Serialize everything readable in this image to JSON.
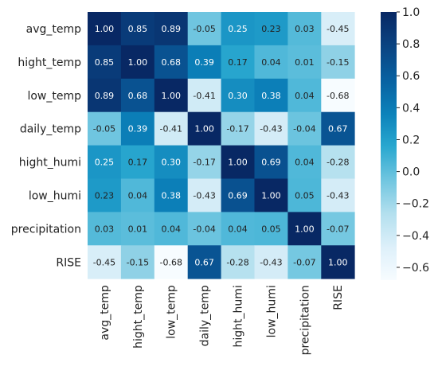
{
  "chart_data": {
    "type": "heatmap",
    "title": "",
    "xlabel": "",
    "ylabel": "",
    "rows": [
      "avg_temp",
      "hight_temp",
      "low_temp",
      "daily_temp",
      "hight_humi",
      "low_humi",
      "precipitation",
      "RISE"
    ],
    "columns": [
      "avg_temp",
      "hight_temp",
      "low_temp",
      "daily_temp",
      "hight_humi",
      "low_humi",
      "precipitation",
      "RISE"
    ],
    "values": [
      [
        1.0,
        0.85,
        0.89,
        -0.05,
        0.25,
        0.23,
        0.03,
        -0.45
      ],
      [
        0.85,
        1.0,
        0.68,
        0.39,
        0.17,
        0.04,
        0.01,
        -0.15
      ],
      [
        0.89,
        0.68,
        1.0,
        -0.41,
        0.3,
        0.38,
        0.04,
        -0.68
      ],
      [
        -0.05,
        0.39,
        -0.41,
        1.0,
        -0.17,
        -0.43,
        -0.04,
        0.67
      ],
      [
        0.25,
        0.17,
        0.3,
        -0.17,
        1.0,
        0.69,
        0.04,
        -0.28
      ],
      [
        0.23,
        0.04,
        0.38,
        -0.43,
        0.69,
        1.0,
        0.05,
        -0.43
      ],
      [
        0.03,
        0.01,
        0.04,
        -0.04,
        0.04,
        0.05,
        1.0,
        -0.07
      ],
      [
        -0.45,
        -0.15,
        -0.68,
        0.67,
        -0.28,
        -0.43,
        -0.07,
        1.0
      ]
    ],
    "value_range": [
      -0.68,
      1.0
    ],
    "colormap": "Blues-like (white to navy)",
    "annotations_shown": true,
    "colorbar": {
      "ticks": [
        1.0,
        0.8,
        0.6,
        0.4,
        0.2,
        0.0,
        -0.2,
        -0.4,
        -0.6
      ],
      "tick_labels": [
        "1.0",
        "0.8",
        "0.6",
        "0.4",
        "0.2",
        "0.0",
        "−0.2",
        "−0.4",
        "−0.6"
      ],
      "placement": "right"
    },
    "colors": {
      "low": "#f5fbff",
      "mid": "#1aa7cf",
      "high": "#0a2c6e"
    }
  }
}
